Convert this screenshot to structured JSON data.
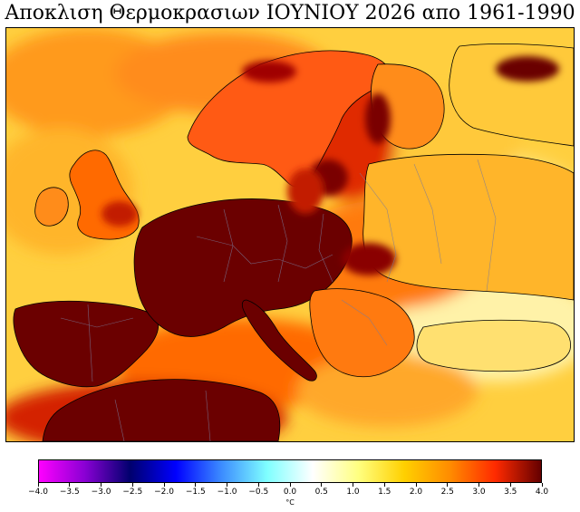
{
  "title": "Αποκλιση Θερμοκρασιων ΙΟΥΝΙΟΥ 2026 απο 1961-1990",
  "colorbar": {
    "unit": "°C",
    "min": -4.0,
    "max": 4.0,
    "tick_labels": [
      "−4.0",
      "−3.5",
      "−3.0",
      "−2.5",
      "−2.0",
      "−1.5",
      "−1.0",
      "−0.5",
      "0.0",
      "0.5",
      "1.0",
      "1.5",
      "2.0",
      "2.5",
      "3.0",
      "3.5",
      "4.0"
    ],
    "colors": [
      "#ff00ff",
      "#8a00d4",
      "#00006e",
      "#0000ff",
      "#3c8cff",
      "#7fffff",
      "#ffffff",
      "#ffff80",
      "#ffd000",
      "#ff8c00",
      "#ff2a00",
      "#640000"
    ]
  },
  "map": {
    "region": "Europe",
    "sea_color": "#ffd44a",
    "land_anomaly_colors": {
      "very_high": "#6b0000",
      "high": "#c21a00",
      "medium": "#ff5a00",
      "low": "#ff9a1a",
      "slight": "#ffc93a",
      "near_zero": "#fff2a8"
    }
  }
}
